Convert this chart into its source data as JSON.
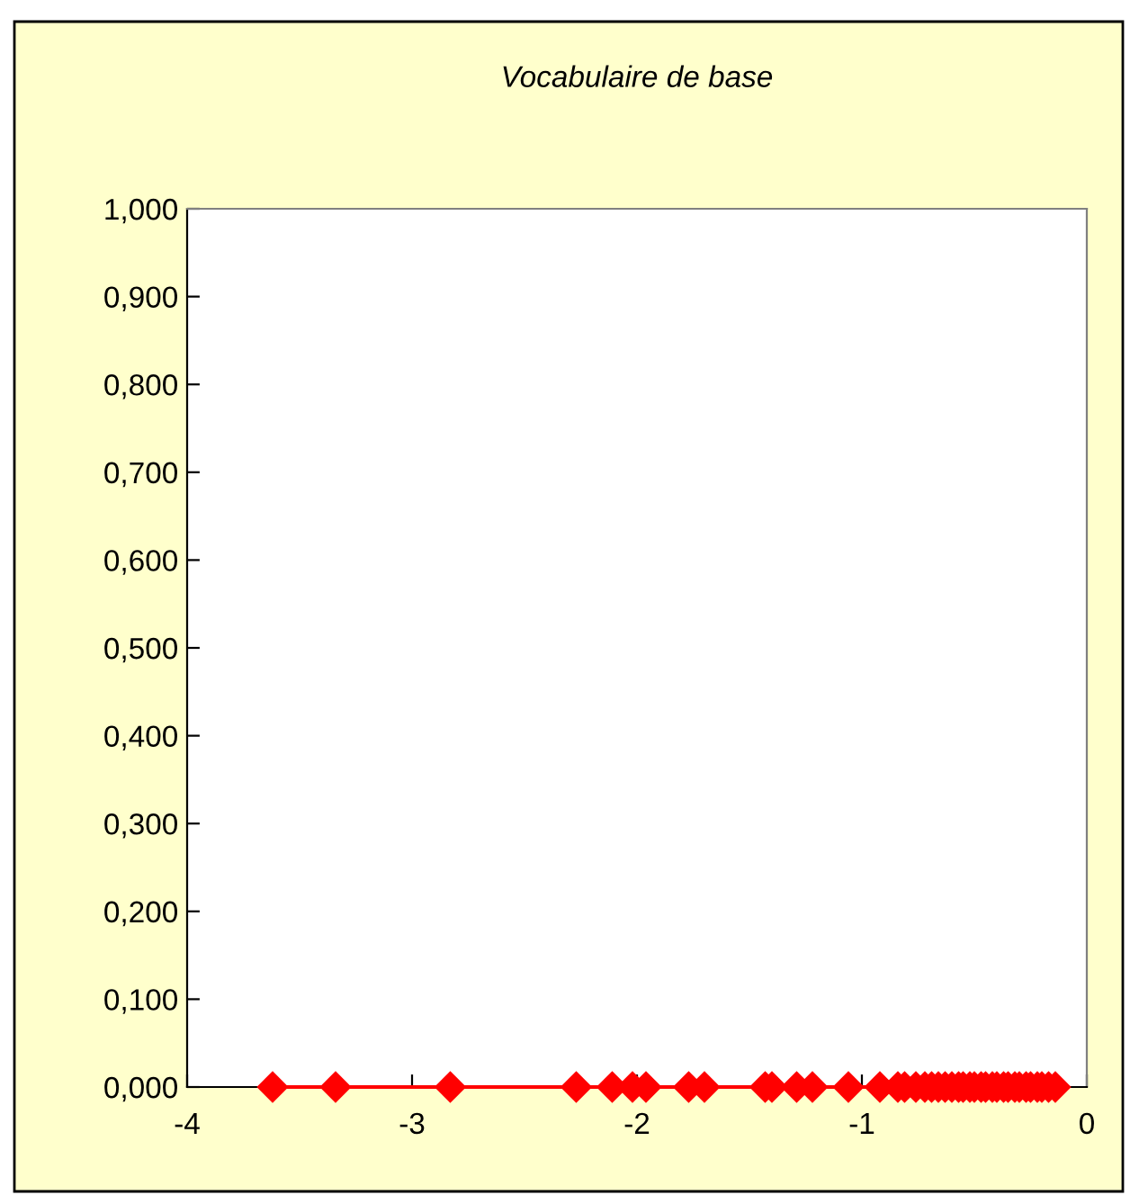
{
  "chart_data": {
    "type": "line",
    "title": "Vocabulaire de base",
    "x": [
      -3.62,
      -3.34,
      -2.83,
      -2.27,
      -2.11,
      -2.02,
      -1.96,
      -1.77,
      -1.7,
      -1.43,
      -1.4,
      -1.29,
      -1.22,
      -1.06,
      -0.92,
      -0.84,
      -0.81,
      -0.76,
      -0.72,
      -0.69,
      -0.66,
      -0.63,
      -0.6,
      -0.57,
      -0.55,
      -0.52,
      -0.5,
      -0.47,
      -0.45,
      -0.42,
      -0.4,
      -0.37,
      -0.35,
      -0.32,
      -0.3,
      -0.27,
      -0.25,
      -0.22,
      -0.2,
      -0.17,
      -0.14
    ],
    "series": [
      {
        "color": "#ff0000",
        "values": [
          0,
          0,
          0,
          0,
          0,
          0,
          0,
          0,
          0,
          0,
          0,
          0,
          0,
          0,
          0,
          0,
          0,
          0,
          0,
          0,
          0,
          0,
          0,
          0,
          0,
          0,
          0,
          0,
          0,
          0,
          0,
          0,
          0,
          0,
          0,
          0,
          0,
          0,
          0,
          0,
          0
        ]
      }
    ],
    "marker": "diamond",
    "line_style": "solid",
    "xlim": [
      -4,
      0
    ],
    "xticks": [
      -4,
      -3,
      -2,
      -1,
      0
    ],
    "ylim": [
      0,
      1
    ],
    "yticks": [
      {
        "value": 0,
        "label": "0,000"
      },
      {
        "value": 0.1,
        "label": "0,100"
      },
      {
        "value": 0.2,
        "label": "0,200"
      },
      {
        "value": 0.3,
        "label": "0,300"
      },
      {
        "value": 0.4,
        "label": "0,400"
      },
      {
        "value": 0.5,
        "label": "0,500"
      },
      {
        "value": 0.6,
        "label": "0,600"
      },
      {
        "value": 0.7,
        "label": "0,700"
      },
      {
        "value": 0.8,
        "label": "0,800"
      },
      {
        "value": 0.9,
        "label": "0,900"
      },
      {
        "value": 1,
        "label": "1,000"
      }
    ],
    "grid": false
  }
}
